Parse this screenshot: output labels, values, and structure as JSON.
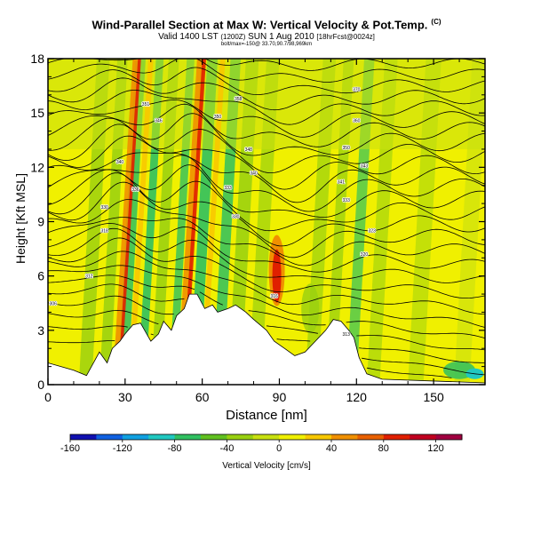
{
  "chart_data": {
    "type": "heatmap",
    "title": "Wind-Parallel Section at Max W: Vertical Velocity & Pot.Temp.",
    "copyright_mark": "(C)",
    "valid_line": "Valid 1400 LST",
    "valid_z": "(1200Z)",
    "valid_date": "SUN 1 Aug 2010",
    "forecast_tag": "[18hrFcst@0024z]",
    "fine_print": "bolt/max=-150@ 33.70,90.7/98,969km",
    "xlabel": "Distance [nm]",
    "ylabel": "Height [Kft MSL]",
    "xlim": [
      0,
      170
    ],
    "ylim": [
      0,
      18
    ],
    "x_ticks": [
      "0",
      "30",
      "60",
      "90",
      "120",
      "150"
    ],
    "y_ticks": [
      "0",
      "3",
      "6",
      "9",
      "12",
      "15",
      "18"
    ],
    "colorbar": {
      "label": "Vertical Velocity [cm/s]",
      "range": [
        -160,
        140
      ],
      "ticks": [
        "-160",
        "-120",
        "-80",
        "-40",
        "0",
        "40",
        "80",
        "120"
      ],
      "colors": [
        "#1010b0",
        "#1060e0",
        "#10a0e0",
        "#20c8c0",
        "#30c060",
        "#60c020",
        "#98d010",
        "#c8e010",
        "#f0f000",
        "#f8c800",
        "#f09000",
        "#e86000",
        "#e02000",
        "#c00020",
        "#a00040"
      ]
    },
    "terrain_profile": [
      {
        "x": 0,
        "z": 1.2
      },
      {
        "x": 5,
        "z": 1.0
      },
      {
        "x": 10,
        "z": 0.8
      },
      {
        "x": 15,
        "z": 0.5
      },
      {
        "x": 20,
        "z": 1.8
      },
      {
        "x": 23,
        "z": 1.2
      },
      {
        "x": 25,
        "z": 2.0
      },
      {
        "x": 28,
        "z": 2.4
      },
      {
        "x": 30,
        "z": 2.8
      },
      {
        "x": 33,
        "z": 3.3
      },
      {
        "x": 36,
        "z": 3.4
      },
      {
        "x": 40,
        "z": 2.4
      },
      {
        "x": 43,
        "z": 2.8
      },
      {
        "x": 45,
        "z": 3.5
      },
      {
        "x": 48,
        "z": 3.0
      },
      {
        "x": 50,
        "z": 3.8
      },
      {
        "x": 53,
        "z": 4.2
      },
      {
        "x": 55,
        "z": 5.0
      },
      {
        "x": 58,
        "z": 5.0
      },
      {
        "x": 61,
        "z": 4.2
      },
      {
        "x": 64,
        "z": 4.4
      },
      {
        "x": 66,
        "z": 4.0
      },
      {
        "x": 70,
        "z": 4.2
      },
      {
        "x": 73,
        "z": 4.4
      },
      {
        "x": 77,
        "z": 4.0
      },
      {
        "x": 80,
        "z": 3.6
      },
      {
        "x": 85,
        "z": 3.0
      },
      {
        "x": 88,
        "z": 2.4
      },
      {
        "x": 92,
        "z": 2.0
      },
      {
        "x": 96,
        "z": 1.6
      },
      {
        "x": 100,
        "z": 1.8
      },
      {
        "x": 104,
        "z": 2.4
      },
      {
        "x": 108,
        "z": 3.0
      },
      {
        "x": 111,
        "z": 3.6
      },
      {
        "x": 114,
        "z": 3.5
      },
      {
        "x": 117,
        "z": 3.0
      },
      {
        "x": 119,
        "z": 2.6
      },
      {
        "x": 121,
        "z": 1.5
      },
      {
        "x": 124,
        "z": 0.6
      },
      {
        "x": 130,
        "z": 0.3
      },
      {
        "x": 170,
        "z": 0.1
      }
    ],
    "theta_contour_labels": [
      {
        "label": "340",
        "x": 28,
        "z": 12.3
      },
      {
        "label": "330",
        "x": 22,
        "z": 9.8
      },
      {
        "label": "318",
        "x": 22,
        "z": 8.5
      },
      {
        "label": "312",
        "x": 16,
        "z": 6.0
      },
      {
        "label": "306",
        "x": 2,
        "z": 4.5
      },
      {
        "label": "351",
        "x": 38,
        "z": 15.5
      },
      {
        "label": "346",
        "x": 43,
        "z": 14.6
      },
      {
        "label": "336",
        "x": 34,
        "z": 10.8
      },
      {
        "label": "350",
        "x": 66,
        "z": 14.8
      },
      {
        "label": "358",
        "x": 74,
        "z": 15.8
      },
      {
        "label": "348",
        "x": 78,
        "z": 13.0
      },
      {
        "label": "340",
        "x": 80,
        "z": 11.7
      },
      {
        "label": "333",
        "x": 70,
        "z": 10.9
      },
      {
        "label": "330",
        "x": 73,
        "z": 9.3
      },
      {
        "label": "316",
        "x": 88,
        "z": 4.9
      },
      {
        "label": "370",
        "x": 120,
        "z": 16.3
      },
      {
        "label": "360",
        "x": 120,
        "z": 14.6
      },
      {
        "label": "350",
        "x": 116,
        "z": 13.1
      },
      {
        "label": "343",
        "x": 123,
        "z": 12.1
      },
      {
        "label": "341",
        "x": 114,
        "z": 11.2
      },
      {
        "label": "333",
        "x": 116,
        "z": 10.2
      },
      {
        "label": "323",
        "x": 126,
        "z": 8.5
      },
      {
        "label": "320",
        "x": 123,
        "z": 7.2
      },
      {
        "label": "313",
        "x": 116,
        "z": 2.8
      }
    ]
  }
}
